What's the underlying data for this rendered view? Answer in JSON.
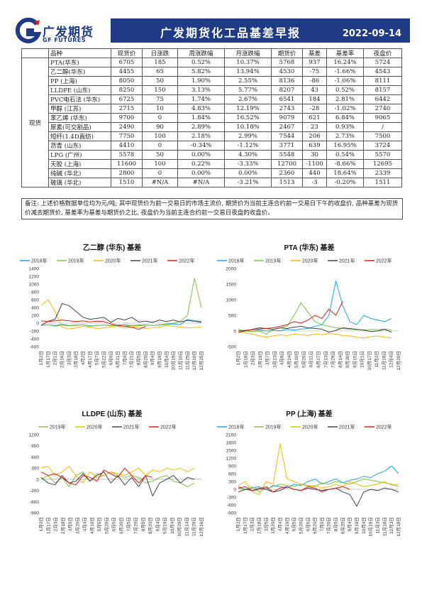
{
  "header": {
    "logo_zh": "广发期货",
    "logo_en": "GF FUTURES",
    "title": "广发期货化工品基差早报",
    "date": "2022-09-14"
  },
  "table": {
    "group_label": "现货",
    "columns": [
      "品种",
      "现货价",
      "日涨跌",
      "周涨跌幅",
      "月涨跌幅",
      "期货价",
      "基差",
      "基差率",
      "夜盘价"
    ],
    "rows": [
      [
        "PTA(华东)",
        "6705",
        "185",
        "0.52%",
        "10.37%",
        "5768",
        "937",
        "16.24%",
        "5724"
      ],
      [
        "乙二醇(华东)",
        "4455",
        "65",
        "5.82%",
        "13.94%",
        "4530",
        "-75",
        "-1.66%",
        "4543"
      ],
      [
        "PP (上海)",
        "8050",
        "50",
        "1.90%",
        "2.55%",
        "8136",
        "-86",
        "-1.06%",
        "8111"
      ],
      [
        "LLDPE (山东)",
        "8250",
        "150",
        "3.13%",
        "5.77%",
        "8207",
        "43",
        "0.52%",
        "8157"
      ],
      [
        "PVC电石法 (华东)",
        "6725",
        "75",
        "1.74%",
        "2.67%",
        "6541",
        "184",
        "2.81%",
        "6442"
      ],
      [
        "甲醇 (江苏)",
        "2715",
        "10",
        "4.83%",
        "12.19%",
        "2743",
        "-28",
        "-1.02%",
        "2740"
      ],
      [
        "苯乙烯 (华东)",
        "9700",
        "0",
        "1.84%",
        "16.52%",
        "9079",
        "621",
        "6.84%",
        "9065"
      ],
      [
        "尿素(可交割品)",
        "2490",
        "90",
        "2.89%",
        "10.18%",
        "2467",
        "23",
        "0.93%",
        "/"
      ],
      [
        "短纤(1.4D直纺)",
        "7750",
        "100",
        "2.18%",
        "2.99%",
        "7544",
        "206",
        "2.73%",
        "7500"
      ],
      [
        "沥青 (山东)",
        "4410",
        "0",
        "-0.34%",
        "-1.12%",
        "3771",
        "639",
        "16.95%",
        "3724"
      ],
      [
        "LPG (广州)",
        "5578",
        "50",
        "0.00%",
        "4.30%",
        "5548",
        "30",
        "0.54%",
        "5570"
      ],
      [
        "天胶 (上海)",
        "11600",
        "100",
        "0.22%",
        "-3.33%",
        "12700",
        "-1100",
        "-8.66%",
        "12695"
      ],
      [
        "纯碱 (华北)",
        "2800",
        "0",
        "0.00%",
        "0.00%",
        "2360",
        "440",
        "18.64%",
        "2339"
      ],
      [
        "玻璃 (华北)",
        "1510",
        "#N/A",
        "#N/A",
        "-3.21%",
        "1513",
        "-3",
        "-0.20%",
        "1511"
      ]
    ]
  },
  "note": "备注: 上述价格数据单位均为元/吨; 其中现货价为前一交易日的市场主流价, 期货价为当前主连合约前一交易日下午的收盘价, 品种基差为现货价减去期货价, 基差率为基差与期货价之比, 夜盘价为当前主连合约前一交易日夜盘的收盘价。",
  "colors": {
    "2018": "#1aa3e8",
    "2019": "#7dc242",
    "2020": "#f5b800",
    "2021": "#444444",
    "2022": "#e21a1a"
  },
  "chart_data": [
    {
      "type": "line",
      "title": "乙二醇 (华东) 基差",
      "legend": [
        "2018年",
        "2019年",
        "2020年",
        "2021年",
        "2022年"
      ],
      "legend_keys": [
        "2018",
        "2019",
        "2020",
        "2021",
        "2022"
      ],
      "ylim": [
        -600,
        1400
      ],
      "yticks": [
        "1400",
        "1200",
        "1000",
        "800",
        "600",
        "400",
        "200",
        "0",
        "-200",
        "-400",
        "-600"
      ],
      "xticks": [
        "1月2日",
        "1月17日",
        "2月1日",
        "2月16日",
        "3月3日",
        "3月18日",
        "4月2日",
        "4月17日",
        "5月7日",
        "5月22日",
        "6月6日",
        "6月21日",
        "7月6日",
        "7月21日",
        "8月5日",
        "8月20日",
        "9月4日",
        "9月19日",
        "10月4日",
        "10月19日",
        "11月10日",
        "11月25日",
        "12月10日",
        "12月25日"
      ],
      "series": [
        {
          "key": "2018",
          "values": [
            -50,
            -40,
            -60,
            -30,
            -60,
            -50,
            -40,
            -70,
            -60,
            -50,
            -60,
            -50,
            -40,
            -60,
            -50,
            -40,
            -60,
            -50,
            -30,
            -20,
            -40,
            100,
            60,
            50
          ]
        },
        {
          "key": "2019",
          "values": [
            -60,
            -40,
            -80,
            -50,
            -70,
            -60,
            -40,
            -80,
            -60,
            -50,
            -70,
            -60,
            -80,
            -60,
            -70,
            -50,
            -60,
            -40,
            -20,
            0,
            50,
            200,
            1150,
            400
          ]
        },
        {
          "key": "2020",
          "values": [
            450,
            600,
            300,
            -100,
            -150,
            -120,
            -80,
            -100,
            -140,
            -120,
            -100,
            -80,
            -120,
            -100,
            -110,
            -130,
            -120,
            -100,
            -60,
            -80,
            -100,
            -120,
            -110,
            -100
          ]
        },
        {
          "key": "2021",
          "values": [
            -60,
            50,
            100,
            500,
            450,
            300,
            150,
            100,
            120,
            150,
            20,
            120,
            80,
            150,
            30,
            50,
            20,
            80,
            40,
            80,
            30,
            70,
            50,
            20
          ]
        },
        {
          "key": "2022",
          "values": [
            60,
            40,
            60,
            80,
            60,
            40,
            60,
            30,
            50,
            40,
            -20,
            -60,
            -80,
            -100,
            -160,
            -80
          ]
        }
      ]
    },
    {
      "type": "line",
      "title": "PTA (华东) 基差",
      "legend": [
        "2018年",
        "2019年",
        "2020年",
        "2021年",
        "2022年"
      ],
      "legend_keys": [
        "2018",
        "2019",
        "2020",
        "2021",
        "2022"
      ],
      "ylim": [
        -500,
        2000
      ],
      "yticks": [
        "2000",
        "1500",
        "1000",
        "500",
        "0",
        "-500"
      ],
      "xticks": [
        "1月2日",
        "1月18日",
        "2月3日",
        "2月19日",
        "3月7日",
        "3月23日",
        "4月8日",
        "4月24日",
        "5月10日",
        "5月26日",
        "6月11日",
        "6月27日",
        "7月13日",
        "7月29日",
        "8月14日",
        "8月30日",
        "9月15日",
        "10月1日",
        "10月17日",
        "11月2日",
        "11月18日",
        "12月4日",
        "12月20日"
      ],
      "series": [
        {
          "key": "2018",
          "values": [
            0,
            20,
            -20,
            30,
            0,
            20,
            10,
            50,
            30,
            60,
            80,
            150,
            200,
            500,
            1600,
            800,
            300,
            200,
            500,
            400,
            350,
            300,
            400
          ]
        },
        {
          "key": "2019",
          "values": [
            50,
            0,
            -20,
            0,
            -100,
            50,
            100,
            150,
            500,
            900,
            600,
            300,
            200,
            150,
            100,
            80,
            50,
            40,
            30,
            50,
            40,
            60,
            30
          ]
        },
        {
          "key": "2020",
          "values": [
            0,
            -60,
            -100,
            -150,
            -200,
            -160,
            -120,
            -150,
            -100,
            -120,
            -140,
            -100,
            -120,
            -80,
            -100,
            -150,
            -160,
            -200,
            -220,
            -180,
            -160,
            -200,
            -220
          ]
        },
        {
          "key": "2021",
          "values": [
            -50,
            0,
            50,
            100,
            80,
            50,
            100,
            80,
            120,
            150,
            100,
            80,
            60,
            -40,
            20,
            100,
            80,
            50,
            30,
            -20,
            0,
            50,
            -40
          ]
        },
        {
          "key": "2022",
          "values": [
            0,
            20,
            40,
            60,
            80,
            100,
            150,
            200,
            300,
            250,
            350,
            500,
            400,
            700,
            500,
            950
          ]
        }
      ]
    },
    {
      "type": "line",
      "title": "LLDPE (山东) 基差",
      "legend": [
        "2019年",
        "2020年",
        "2021年",
        "2022年"
      ],
      "legend_keys": [
        "2019",
        "2020",
        "2021",
        "2022"
      ],
      "ylim": [
        -900,
        1200
      ],
      "yticks": [
        "1200",
        "900",
        "600",
        "300",
        "0",
        "-300",
        "-600",
        "-900"
      ],
      "xticks": [
        "1月2日",
        "1月17日",
        "2月3日",
        "2月18日",
        "3月5日",
        "3月20日",
        "4月4日",
        "4月19日",
        "5月5日",
        "5月20日",
        "6月5日",
        "6月20日",
        "7月5日",
        "7月20日",
        "8月5日",
        "8月20日",
        "9月4日",
        "9月19日",
        "10月4日",
        "10月29日",
        "11月14日",
        "11月29日",
        "12月16日"
      ],
      "series": [
        {
          "key": "2019",
          "values": [
            0,
            100,
            -100,
            50,
            -200,
            100,
            200,
            -50,
            150,
            100,
            200,
            100,
            50,
            100,
            50,
            -100,
            -50,
            50,
            100,
            -50,
            -100,
            -200,
            -100
          ]
        },
        {
          "key": "2020",
          "values": [
            300,
            350,
            100,
            200,
            350,
            100,
            -100,
            200,
            50,
            100,
            200,
            150,
            100,
            200,
            300,
            100,
            250,
            200,
            300,
            250,
            300,
            200,
            300
          ]
        },
        {
          "key": "2021",
          "values": [
            50,
            -100,
            -150,
            100,
            -100,
            -50,
            150,
            -50,
            100,
            200,
            -100,
            100,
            -150,
            50,
            -200,
            100,
            -450,
            -100,
            0,
            100,
            -100,
            50,
            0
          ]
        },
        {
          "key": "2022",
          "values": [
            200,
            100,
            150,
            50,
            -100,
            -150,
            100,
            50,
            -50,
            250,
            150,
            50,
            300,
            100,
            -100,
            100,
            50
          ]
        },
        {
          "key": "2018",
          "values": []
        }
      ]
    },
    {
      "type": "line",
      "title": "PP (上海) 基差",
      "legend": [
        "2018年",
        "2019年",
        "2020年",
        "2021年",
        "2022年"
      ],
      "legend_keys": [
        "2018",
        "2019",
        "2020",
        "2021",
        "2022"
      ],
      "ylim": [
        -900,
        2100
      ],
      "yticks": [
        "2100",
        "1800",
        "1500",
        "1200",
        "900",
        "600",
        "300",
        "0",
        "-300",
        "-600",
        "-900"
      ],
      "xticks": [
        "1月2日",
        "1月17日",
        "2月3日",
        "2月18日",
        "3月5日",
        "3月20日",
        "4月4日",
        "4月19日",
        "5月5日",
        "5月20日",
        "6月5日",
        "6月20日",
        "7月5日",
        "7月20日",
        "8月5日",
        "8月20日",
        "9月4日",
        "9月19日",
        "10月4日",
        "10月19日",
        "11月3日",
        "11月18日",
        "12月3日",
        "12月18日"
      ],
      "series": [
        {
          "key": "2018",
          "values": [
            100,
            0,
            50,
            100,
            0,
            150,
            100,
            50,
            200,
            150,
            300,
            400,
            200,
            300,
            400,
            250,
            350,
            400,
            500,
            450,
            600,
            700,
            900,
            600
          ]
        },
        {
          "key": "2019",
          "values": [
            50,
            0,
            100,
            -100,
            50,
            100,
            200,
            150,
            100,
            200,
            150,
            100,
            250,
            200,
            300,
            250,
            200,
            300,
            400,
            350,
            300,
            250,
            200,
            100
          ]
        },
        {
          "key": "2020",
          "values": [
            150,
            300,
            -100,
            -200,
            300,
            200,
            1750,
            400,
            300,
            200,
            100,
            150,
            50,
            100,
            200,
            100,
            300,
            200,
            100,
            150,
            200,
            300,
            150,
            200
          ]
        },
        {
          "key": "2021",
          "values": [
            -100,
            0,
            -50,
            50,
            0,
            -100,
            -50,
            100,
            0,
            -50,
            50,
            0,
            -50,
            0,
            50,
            -100,
            -200,
            -650,
            -100,
            0,
            -50,
            50,
            0,
            -100
          ]
        },
        {
          "key": "2022",
          "values": [
            50,
            100,
            -50,
            0,
            100,
            -100,
            50,
            100,
            0,
            -50,
            100,
            50,
            -100,
            0,
            50,
            100,
            0
          ]
        }
      ]
    }
  ]
}
